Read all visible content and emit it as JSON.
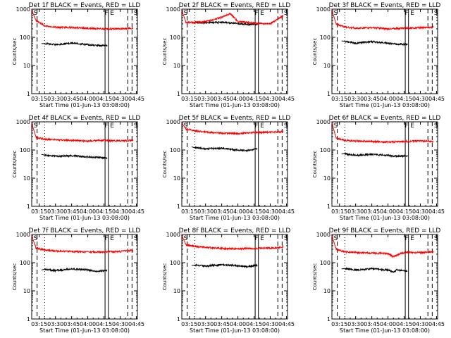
{
  "common": {
    "ylabel": "Counts/sec",
    "xlabel": "Start Time (01-Jun-13 03:08:00)",
    "xticks": [
      "03:15",
      "03:30",
      "03:45",
      "04:00",
      "04:15",
      "04:30",
      "04:45"
    ],
    "yticks": [
      "1",
      "10",
      "100",
      "1000"
    ],
    "marker_labels": [
      "S",
      "F",
      "E",
      "S"
    ],
    "colors": {
      "events": "#000000",
      "lld": "#ff0000",
      "axis": "#000000"
    }
  },
  "chart_data": [
    {
      "type": "line",
      "title": "Det 1f BLACK = Events, RED = LLD",
      "ylog": true,
      "ylim": [
        1,
        1000
      ],
      "xlim": [
        "03:08",
        "04:46"
      ],
      "series": [
        {
          "name": "Events",
          "x": [
            "03:17",
            "03:20",
            "03:30",
            "03:45",
            "04:00",
            "04:08",
            "04:18"
          ],
          "values": [
            60,
            60,
            55,
            62,
            55,
            52,
            50
          ]
        },
        {
          "name": "LLD",
          "x": [
            "03:08",
            "03:12",
            "03:20",
            "03:30",
            "03:45",
            "04:00",
            "04:15",
            "04:30",
            "04:42"
          ],
          "values": [
            900,
            400,
            260,
            230,
            220,
            210,
            200,
            200,
            210
          ]
        }
      ]
    },
    {
      "type": "line",
      "title": "Det 2f BLACK = Events, RED = LLD",
      "ylog": true,
      "ylim": [
        1,
        1000
      ],
      "xlim": [
        "03:08",
        "04:46"
      ],
      "series": [
        {
          "name": "Events",
          "x": [
            "03:17",
            "03:20",
            "03:30",
            "03:45",
            "04:00",
            "04:08",
            "04:18"
          ],
          "values": [
            330,
            340,
            330,
            340,
            310,
            290,
            290
          ]
        },
        {
          "name": "LLD",
          "x": [
            "03:08",
            "03:12",
            "03:20",
            "03:30",
            "03:45",
            "03:53",
            "04:00",
            "04:15",
            "04:30",
            "04:42"
          ],
          "values": [
            900,
            330,
            340,
            360,
            520,
            700,
            360,
            320,
            300,
            600
          ]
        }
      ]
    },
    {
      "type": "line",
      "title": "Det 3f BLACK = Events, RED = LLD",
      "ylog": true,
      "ylim": [
        1,
        1000
      ],
      "xlim": [
        "03:08",
        "04:46"
      ],
      "series": [
        {
          "name": "Events",
          "x": [
            "03:17",
            "03:20",
            "03:30",
            "03:45",
            "04:00",
            "04:08",
            "04:18"
          ],
          "values": [
            75,
            72,
            62,
            70,
            62,
            58,
            56
          ]
        },
        {
          "name": "LLD",
          "x": [
            "03:08",
            "03:12",
            "03:20",
            "03:30",
            "03:45",
            "04:00",
            "04:15",
            "04:30",
            "04:42"
          ],
          "values": [
            900,
            300,
            230,
            210,
            220,
            200,
            210,
            220,
            230
          ]
        }
      ]
    },
    {
      "type": "line",
      "title": "Det 4f BLACK = Events, RED = LLD",
      "ylog": true,
      "ylim": [
        1,
        1000
      ],
      "xlim": [
        "03:08",
        "04:46"
      ],
      "series": [
        {
          "name": "Events",
          "x": [
            "03:17",
            "03:20",
            "03:30",
            "03:45",
            "04:00",
            "04:08",
            "04:18"
          ],
          "values": [
            70,
            66,
            60,
            62,
            57,
            55,
            52
          ]
        },
        {
          "name": "LLD",
          "x": [
            "03:08",
            "03:12",
            "03:20",
            "03:30",
            "03:45",
            "04:00",
            "04:15",
            "04:30",
            "04:42"
          ],
          "values": [
            900,
            280,
            240,
            230,
            220,
            210,
            220,
            210,
            220
          ]
        }
      ]
    },
    {
      "type": "line",
      "title": "Det 5f BLACK = Events, RED = LLD",
      "ylog": true,
      "ylim": [
        1,
        1000
      ],
      "xlim": [
        "03:08",
        "04:46"
      ],
      "series": [
        {
          "name": "Events",
          "x": [
            "03:17",
            "03:20",
            "03:30",
            "03:45",
            "04:00",
            "04:08",
            "04:18"
          ],
          "values": [
            130,
            120,
            110,
            115,
            100,
            95,
            110
          ]
        },
        {
          "name": "LLD",
          "x": [
            "03:08",
            "03:12",
            "03:20",
            "03:30",
            "03:45",
            "04:00",
            "04:15",
            "04:30",
            "04:42"
          ],
          "values": [
            900,
            550,
            480,
            430,
            400,
            380,
            420,
            430,
            450
          ]
        }
      ]
    },
    {
      "type": "line",
      "title": "Det 6f BLACK = Events, RED = LLD",
      "ylog": true,
      "ylim": [
        1,
        1000
      ],
      "xlim": [
        "03:08",
        "04:46"
      ],
      "series": [
        {
          "name": "Events",
          "x": [
            "03:17",
            "03:20",
            "03:30",
            "03:45",
            "04:00",
            "04:08",
            "04:18"
          ],
          "values": [
            72,
            74,
            65,
            70,
            64,
            60,
            62
          ]
        },
        {
          "name": "LLD",
          "x": [
            "03:08",
            "03:12",
            "03:20",
            "03:30",
            "03:45",
            "04:00",
            "04:15",
            "04:30",
            "04:42"
          ],
          "values": [
            900,
            260,
            220,
            210,
            200,
            190,
            200,
            210,
            200
          ]
        }
      ]
    },
    {
      "type": "line",
      "title": "Det 7f BLACK = Events, RED = LLD",
      "ylog": true,
      "ylim": [
        1,
        1000
      ],
      "xlim": [
        "03:08",
        "04:46"
      ],
      "series": [
        {
          "name": "Events",
          "x": [
            "03:17",
            "03:20",
            "03:30",
            "03:45",
            "04:00",
            "04:08",
            "04:18"
          ],
          "values": [
            55,
            58,
            52,
            60,
            55,
            50,
            52
          ]
        },
        {
          "name": "LLD",
          "x": [
            "03:08",
            "03:12",
            "03:20",
            "03:30",
            "03:45",
            "04:00",
            "04:15",
            "04:30",
            "04:42"
          ],
          "values": [
            900,
            330,
            280,
            260,
            250,
            240,
            240,
            250,
            270
          ]
        }
      ]
    },
    {
      "type": "line",
      "title": "Det 8f BLACK = Events, RED = LLD",
      "ylog": true,
      "ylim": [
        1,
        1000
      ],
      "xlim": [
        "03:08",
        "04:46"
      ],
      "series": [
        {
          "name": "Events",
          "x": [
            "03:17",
            "03:20",
            "03:30",
            "03:45",
            "04:00",
            "04:08",
            "04:18"
          ],
          "values": [
            80,
            82,
            75,
            85,
            78,
            72,
            80
          ]
        },
        {
          "name": "LLD",
          "x": [
            "03:08",
            "03:12",
            "03:20",
            "03:30",
            "03:45",
            "04:00",
            "04:15",
            "04:30",
            "04:42"
          ],
          "values": [
            900,
            430,
            380,
            350,
            320,
            310,
            320,
            330,
            350
          ]
        }
      ]
    },
    {
      "type": "line",
      "title": "Det 9f BLACK = Events, RED = LLD",
      "ylog": true,
      "ylim": [
        1,
        1000
      ],
      "xlim": [
        "03:08",
        "04:46"
      ],
      "series": [
        {
          "name": "Events",
          "x": [
            "03:17",
            "03:20",
            "03:30",
            "03:45",
            "04:00",
            "04:05",
            "04:08",
            "04:18"
          ],
          "values": [
            60,
            62,
            55,
            60,
            55,
            45,
            55,
            50
          ]
        },
        {
          "name": "LLD",
          "x": [
            "03:08",
            "03:12",
            "03:20",
            "03:30",
            "03:45",
            "04:00",
            "04:05",
            "04:10",
            "04:15",
            "04:30",
            "04:42"
          ],
          "values": [
            900,
            300,
            240,
            230,
            220,
            210,
            160,
            200,
            230,
            230,
            240
          ]
        }
      ]
    }
  ]
}
